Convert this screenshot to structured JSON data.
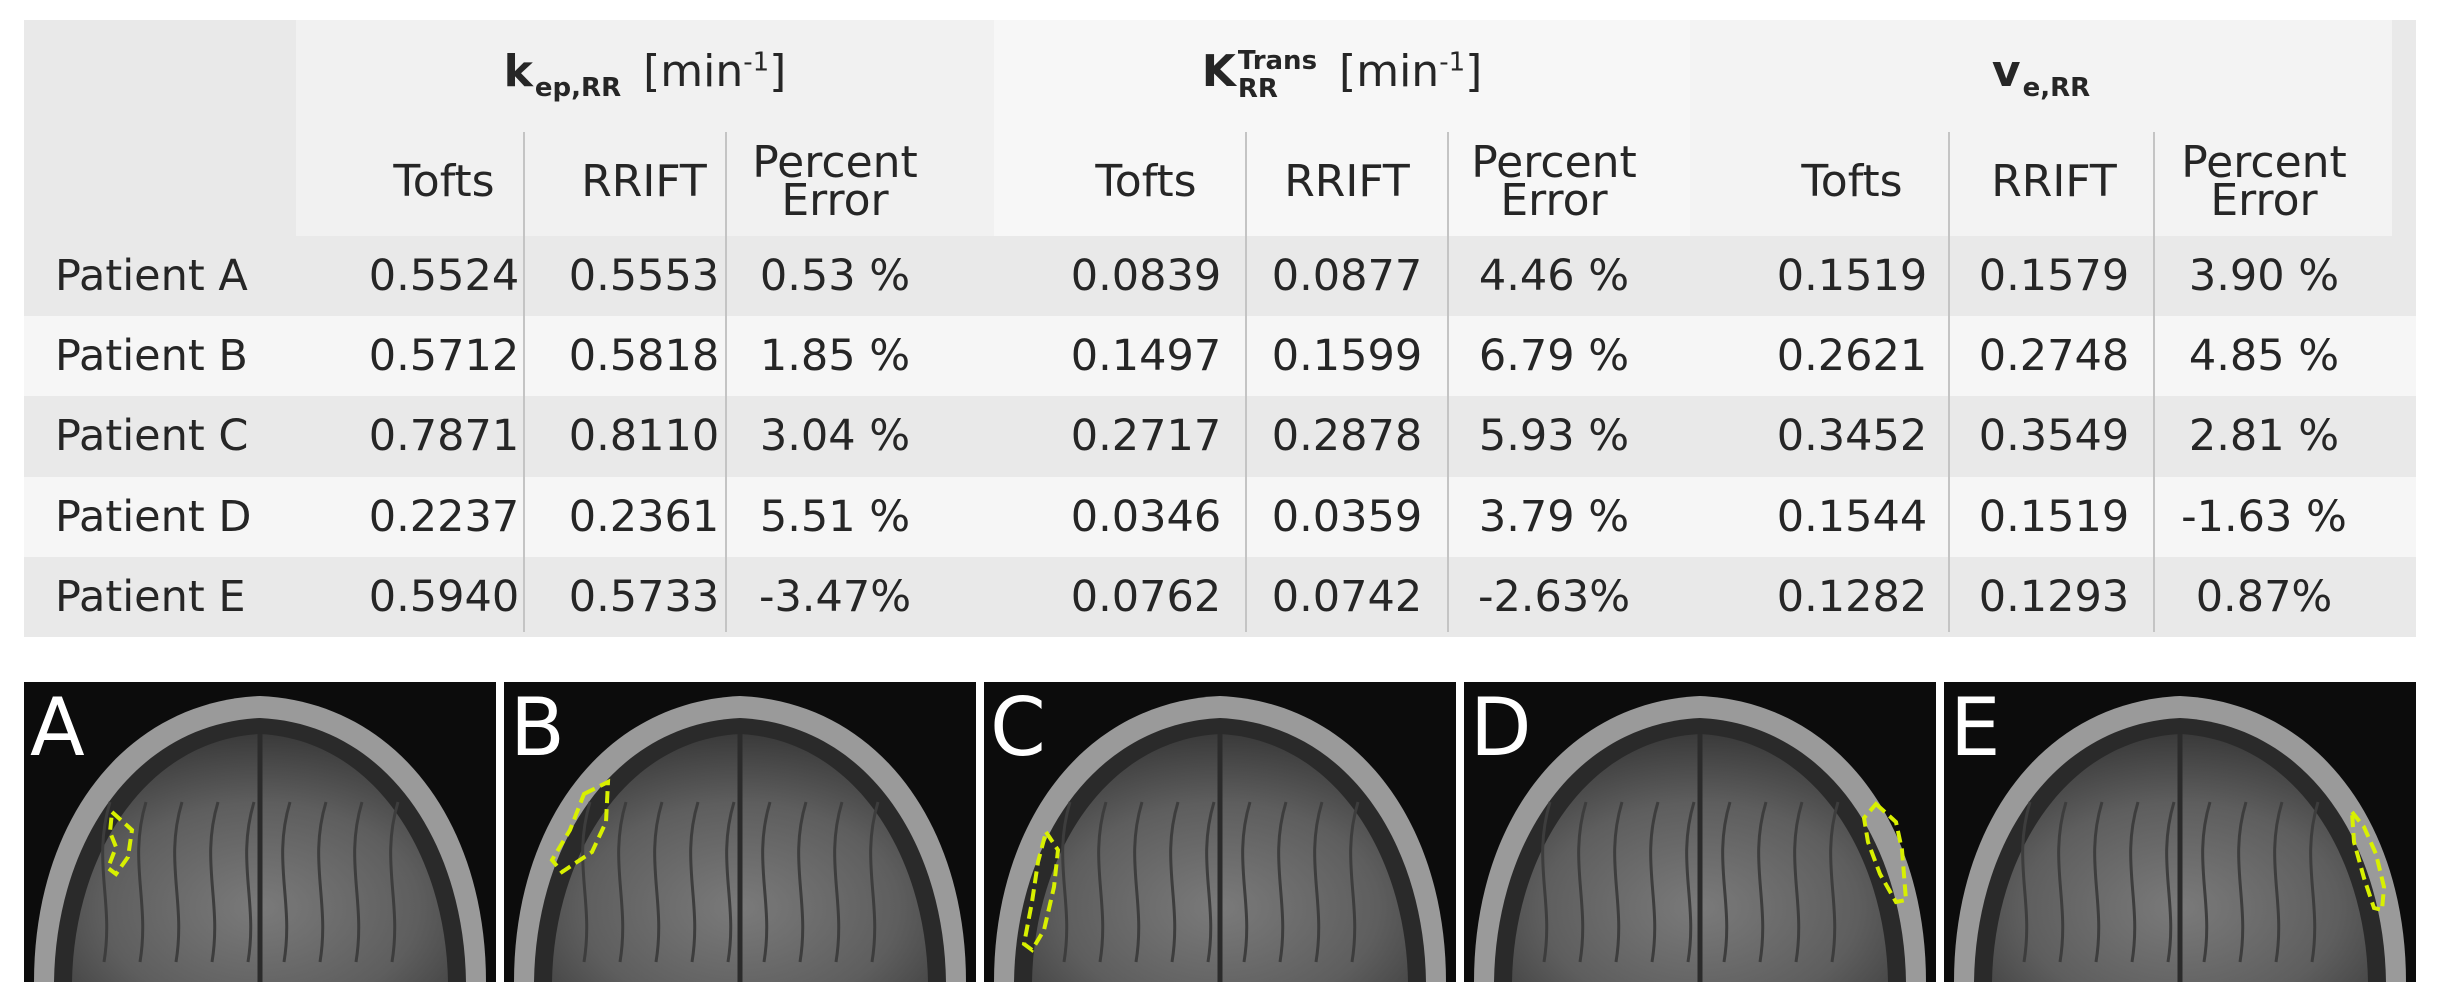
{
  "groups": [
    {
      "symbol": "k",
      "sub": "ep,RR",
      "sup": "",
      "unit": "[min",
      "unit_sup": "-1",
      "unit_close": "]"
    },
    {
      "symbol": "K",
      "sub": "RR",
      "sup": "Trans",
      "unit": "[min",
      "unit_sup": "-1",
      "unit_close": "]"
    },
    {
      "symbol": "v",
      "sub": "e,RR",
      "sup": "",
      "unit": "",
      "unit_sup": "",
      "unit_close": ""
    }
  ],
  "subheaders": {
    "tofts": "Tofts",
    "rrift": "RRIFT",
    "pe_line1": "Percent",
    "pe_line2": "Error"
  },
  "rows": [
    {
      "label": "Patient A",
      "values": [
        "0.5524",
        "0.5553",
        "0.53 %",
        "0.0839",
        "0.0877",
        "4.46 %",
        "0.1519",
        "0.1579",
        "3.90 %"
      ]
    },
    {
      "label": "Patient B",
      "values": [
        "0.5712",
        "0.5818",
        "1.85 %",
        "0.1497",
        "0.1599",
        "6.79 %",
        "0.2621",
        "0.2748",
        "4.85 %"
      ]
    },
    {
      "label": "Patient C",
      "values": [
        "0.7871",
        "0.8110",
        "3.04 %",
        "0.2717",
        "0.2878",
        "5.93 %",
        "0.3452",
        "0.3549",
        "2.81 %"
      ]
    },
    {
      "label": "Patient D",
      "values": [
        "0.2237",
        "0.2361",
        "5.51 %",
        "0.0346",
        "0.0359",
        "3.79 %",
        "0.1544",
        "0.1519",
        "-1.63 %"
      ]
    },
    {
      "label": "Patient E",
      "values": [
        "0.5940",
        "0.5733",
        "-3.47%",
        "0.0762",
        "0.0742",
        "-2.63%",
        "0.1282",
        "0.1293",
        "0.87%"
      ]
    }
  ],
  "panels": [
    {
      "letter": "A",
      "region_icon": "dashed-roi-outline"
    },
    {
      "letter": "B",
      "region_icon": "dashed-roi-outline"
    },
    {
      "letter": "C",
      "region_icon": "dashed-roi-outline"
    },
    {
      "letter": "D",
      "region_icon": "dashed-roi-outline"
    },
    {
      "letter": "E",
      "region_icon": "dashed-roi-outline"
    }
  ],
  "colors": {
    "roi_outline": "#d8f000",
    "band_dark": "#e9e9e9",
    "band_light": "#f6f6f6"
  }
}
